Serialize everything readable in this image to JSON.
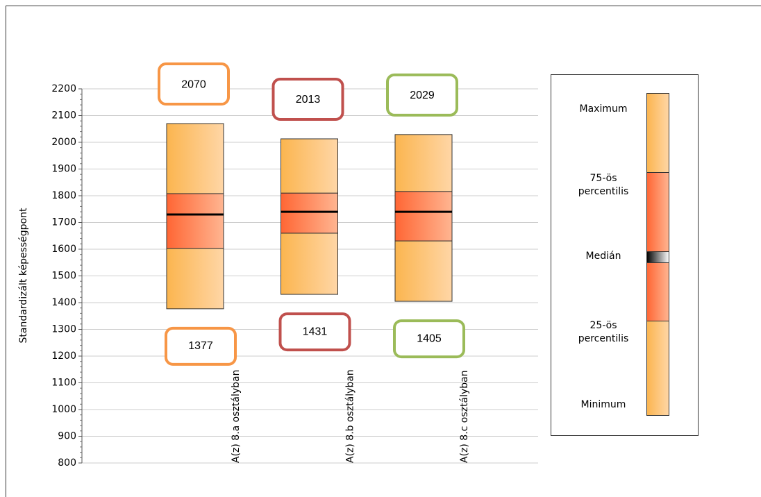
{
  "chart_data": {
    "type": "box",
    "y_label": "Standardizált képességpont",
    "categories": [
      "A(z) 8.a osztályban",
      "A(z) 8.b osztályban",
      "A(z) 8.c osztályban"
    ],
    "min": [
      1377,
      1431,
      1405
    ],
    "q1": [
      1603,
      1660,
      1631
    ],
    "median": [
      1730,
      1740,
      1740
    ],
    "q3": [
      1808,
      1810,
      1816
    ],
    "max": [
      2070,
      2013,
      2029
    ],
    "label_colors": [
      "#f79646",
      "#c0504d",
      "#9bbb59"
    ],
    "ylim": [
      800,
      2200
    ],
    "yticks": [
      800,
      900,
      1000,
      1100,
      1200,
      1300,
      1400,
      1500,
      1600,
      1700,
      1800,
      1900,
      2000,
      2100,
      2200
    ],
    "grid": true,
    "legend": [
      "Maximum",
      "75-ös percentilis",
      "Medián",
      "25-ös percentilis",
      "Minimum"
    ]
  }
}
